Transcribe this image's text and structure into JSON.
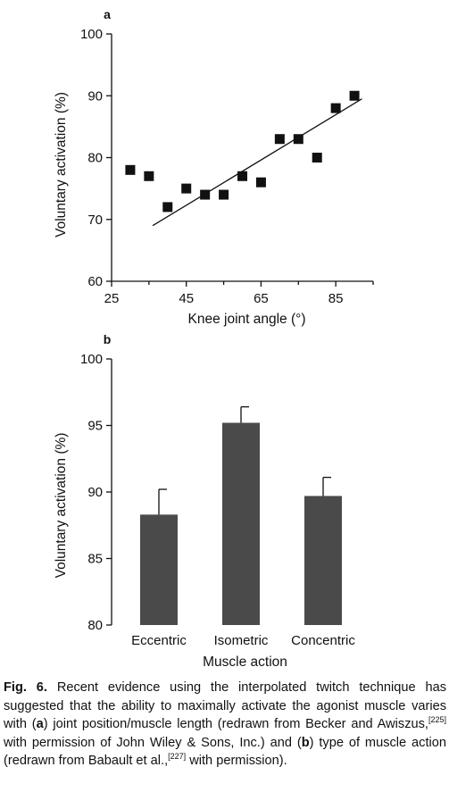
{
  "chart_data": [
    {
      "panel": "a",
      "type": "scatter",
      "xlabel": "Knee joint angle (°)",
      "ylabel": "Voluntary activation (%)",
      "xlim": [
        25,
        95
      ],
      "ylim": [
        60,
        100
      ],
      "xticks": [
        25,
        45,
        65,
        85
      ],
      "yticks": [
        60,
        70,
        80,
        90,
        100
      ],
      "points": [
        {
          "x": 30,
          "y": 78
        },
        {
          "x": 35,
          "y": 77
        },
        {
          "x": 40,
          "y": 72
        },
        {
          "x": 45,
          "y": 75
        },
        {
          "x": 50,
          "y": 74
        },
        {
          "x": 55,
          "y": 74
        },
        {
          "x": 60,
          "y": 77
        },
        {
          "x": 65,
          "y": 76
        },
        {
          "x": 70,
          "y": 83
        },
        {
          "x": 75,
          "y": 83
        },
        {
          "x": 80,
          "y": 80
        },
        {
          "x": 85,
          "y": 88
        },
        {
          "x": 90,
          "y": 90
        }
      ],
      "trendline": {
        "x": [
          36,
          92
        ],
        "y": [
          69,
          89.5
        ]
      },
      "grid": false
    },
    {
      "panel": "b",
      "type": "bar",
      "xlabel": "Muscle action",
      "ylabel": "Voluntary activation (%)",
      "ylim": [
        80,
        100
      ],
      "yticks": [
        80,
        85,
        90,
        95,
        100
      ],
      "categories": [
        "Eccentric",
        "Isometric",
        "Concentric"
      ],
      "values": [
        88.3,
        95.2,
        89.7
      ],
      "errors": [
        1.9,
        1.2,
        1.4
      ],
      "color": "#4a4a4a",
      "grid": false
    }
  ],
  "caption": {
    "label": "Fig. 6.",
    "segments": [
      {
        "t": " Recent evidence using the interpolated twitch technique has suggested that the ability to maximally activate the agonist muscle varies with ("
      },
      {
        "t": "a",
        "b": true
      },
      {
        "t": ") joint position/muscle length (redrawn from Becker and Awiszus,"
      },
      {
        "t": "[225]",
        "sup": true
      },
      {
        "t": " with permission of John Wiley & Sons, Inc.) and ("
      },
      {
        "t": "b",
        "b": true
      },
      {
        "t": ") type of muscle action (redrawn from Babault et al.,"
      },
      {
        "t": "[227]",
        "sup": true
      },
      {
        "t": " with permission)."
      }
    ]
  }
}
